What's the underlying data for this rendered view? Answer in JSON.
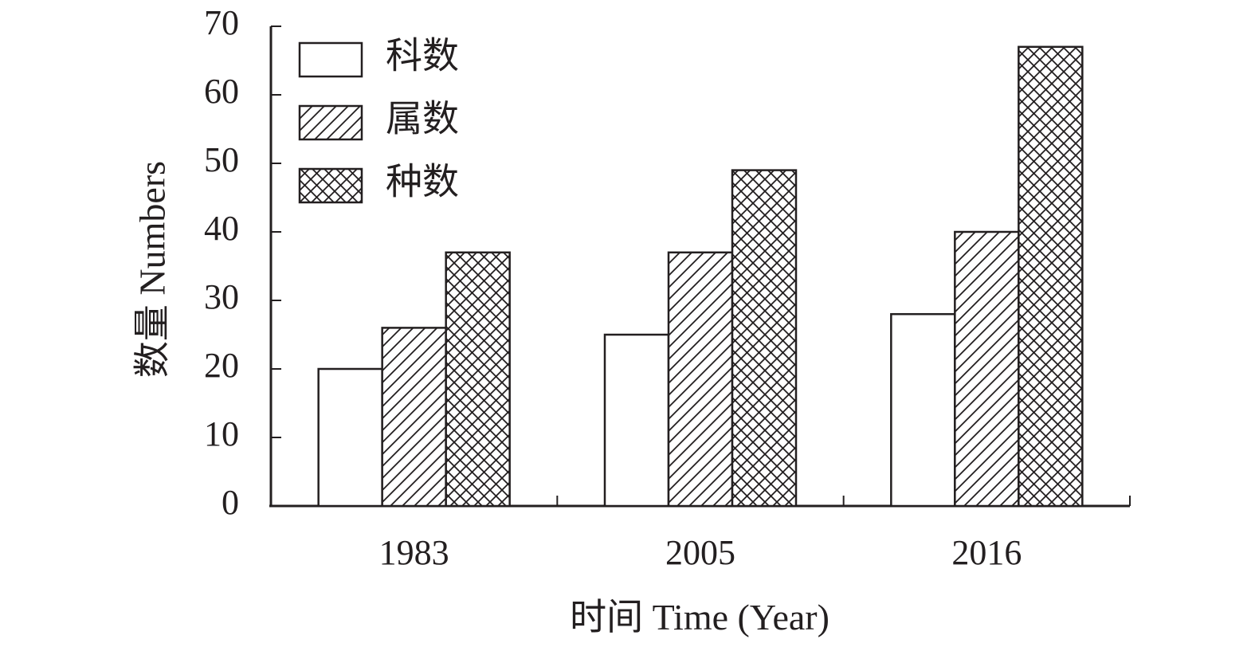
{
  "chart_data": {
    "type": "bar",
    "categories": [
      "1983",
      "2005",
      "2016"
    ],
    "series": [
      {
        "name": "科数",
        "values": [
          20,
          25,
          28
        ],
        "pattern": "none"
      },
      {
        "name": "属数",
        "values": [
          26,
          37,
          40
        ],
        "pattern": "diagonal"
      },
      {
        "name": "种数",
        "values": [
          37,
          49,
          67
        ],
        "pattern": "crosshatch"
      }
    ],
    "xlabel": "时间 Time (Year)",
    "ylabel": "数量 Numbers",
    "ylim": [
      0,
      70
    ],
    "yticks": [
      "0",
      "10",
      "20",
      "30",
      "40",
      "50",
      "60",
      "70"
    ],
    "grid": false,
    "legend_position": "top-left",
    "colors": {
      "stroke": "#231f20",
      "fill": "#ffffff"
    }
  }
}
